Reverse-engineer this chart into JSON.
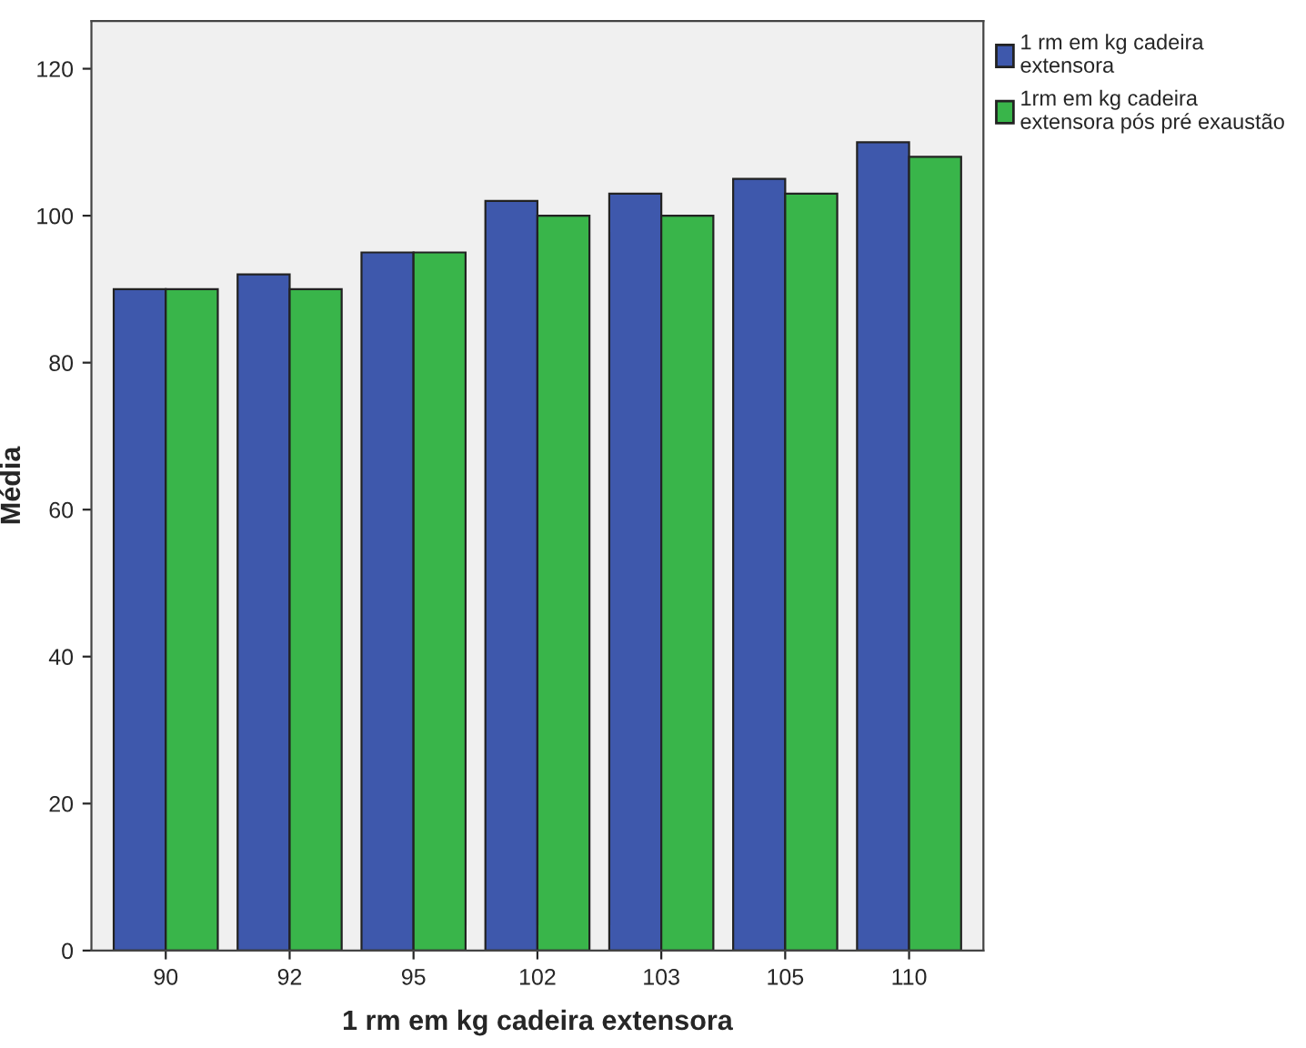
{
  "chart_data": {
    "type": "bar",
    "xlabel": "1 rm em kg cadeira extensora",
    "ylabel": "Média",
    "categories": [
      "90",
      "92",
      "95",
      "102",
      "103",
      "105",
      "110"
    ],
    "series": [
      {
        "name": "1 rm em kg cadeira extensora",
        "color": "#3e58ac",
        "values": [
          90,
          92,
          95,
          102,
          103,
          105,
          110
        ]
      },
      {
        "name": "1rm em kg cadeira extensora pós pré exaustão",
        "color": "#39b54a",
        "values": [
          90,
          90,
          95,
          100,
          100,
          103,
          108
        ]
      }
    ],
    "ylim": [
      0,
      126.5
    ],
    "yticks": [
      0,
      20,
      40,
      60,
      80,
      100,
      120
    ],
    "grid": false,
    "legend": "top right"
  }
}
